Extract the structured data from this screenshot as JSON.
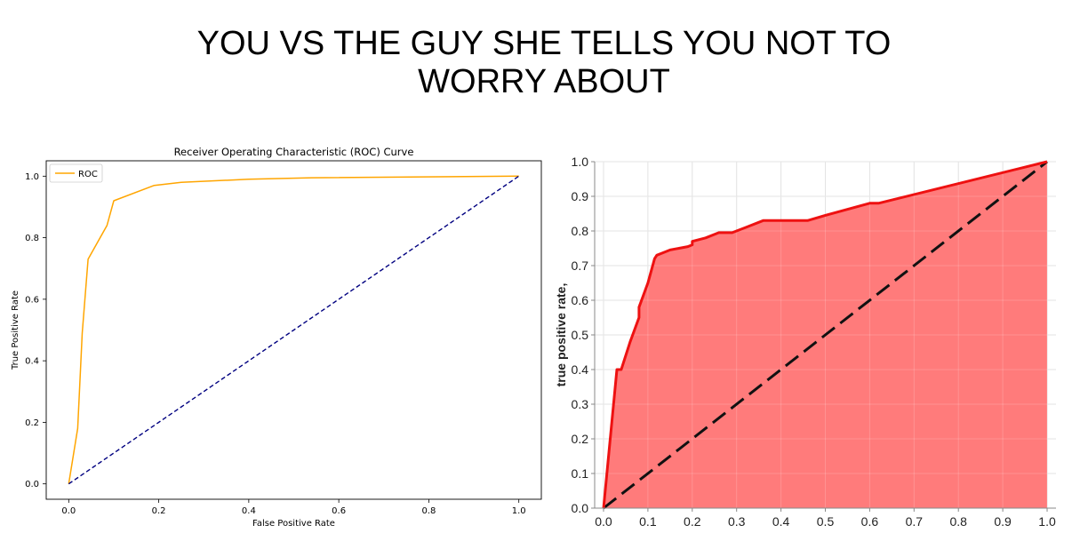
{
  "meme": {
    "title_line1": "YOU VS THE GUY SHE TELLS YOU NOT TO",
    "title_line2": "WORRY ABOUT"
  },
  "chart_data": [
    {
      "type": "line",
      "title": "Receiver Operating Characteristic (ROC) Curve",
      "xlabel": "False Positive Rate",
      "ylabel": "True Positive Rate",
      "xlim": [
        -0.05,
        1.05
      ],
      "ylim": [
        -0.05,
        1.05
      ],
      "xticks": [
        0.0,
        0.2,
        0.4,
        0.6,
        0.8,
        1.0
      ],
      "yticks": [
        0.0,
        0.2,
        0.4,
        0.6,
        0.8,
        1.0
      ],
      "xtick_labels": [
        "0.0",
        "0.2",
        "0.4",
        "0.6",
        "0.8",
        "1.0"
      ],
      "ytick_labels": [
        "0.0",
        "0.2",
        "0.4",
        "0.6",
        "0.8",
        "1.0"
      ],
      "grid": false,
      "legend_position": "top-left",
      "series": [
        {
          "name": "ROC",
          "color": "#ffa500",
          "style": "solid",
          "x": [
            0.0,
            0.02,
            0.03,
            0.043,
            0.085,
            0.1,
            0.19,
            0.25,
            0.4,
            0.54,
            1.0
          ],
          "y": [
            0.0,
            0.18,
            0.49,
            0.73,
            0.84,
            0.92,
            0.97,
            0.98,
            0.99,
            0.995,
            1.0
          ]
        },
        {
          "color": "#000080",
          "style": "dashed",
          "x": [
            0.0,
            1.0
          ],
          "y": [
            0.0,
            1.0
          ]
        }
      ]
    },
    {
      "type": "area",
      "title": "",
      "xlabel": "",
      "ylabel": "true positive rate,",
      "xlim": [
        -0.02,
        1.02
      ],
      "ylim": [
        0.0,
        1.0
      ],
      "xticks": [
        0.0,
        0.1,
        0.2,
        0.3,
        0.4,
        0.5,
        0.6,
        0.7,
        0.8,
        0.9,
        1.0
      ],
      "xtick_labels": [
        "0.0",
        "0.1",
        "0.2",
        "0.3",
        "0.4",
        "0.5",
        "0.6",
        "0.7",
        "0.8",
        "0.9",
        "1.0"
      ],
      "yticks": [
        0.0,
        0.1,
        0.2,
        0.3,
        0.4,
        0.5,
        0.6,
        0.7,
        0.8,
        0.9,
        1.0
      ],
      "ytick_labels": [
        "0.0",
        "0.1",
        "0.2",
        "0.3",
        "0.4",
        "0.5",
        "0.6",
        "0.7",
        "0.8",
        "0.9",
        "1.0"
      ],
      "grid": true,
      "series": [
        {
          "color": "#ee1111",
          "fill": "#ff7b7b",
          "style": "solid",
          "x": [
            0.0,
            0.03,
            0.04,
            0.06,
            0.08,
            0.08,
            0.1,
            0.115,
            0.12,
            0.14,
            0.15,
            0.17,
            0.19,
            0.2,
            0.2,
            0.23,
            0.26,
            0.28,
            0.29,
            0.32,
            0.36,
            0.4,
            0.46,
            0.5,
            0.6,
            0.62,
            1.0
          ],
          "y": [
            0.0,
            0.4,
            0.4,
            0.48,
            0.55,
            0.58,
            0.65,
            0.72,
            0.73,
            0.74,
            0.745,
            0.75,
            0.755,
            0.76,
            0.77,
            0.78,
            0.795,
            0.795,
            0.795,
            0.81,
            0.83,
            0.83,
            0.83,
            0.845,
            0.88,
            0.88,
            1.0
          ]
        },
        {
          "color": "#111111",
          "style": "dashed",
          "x": [
            0.0,
            1.0
          ],
          "y": [
            0.0,
            1.0
          ]
        }
      ]
    }
  ]
}
